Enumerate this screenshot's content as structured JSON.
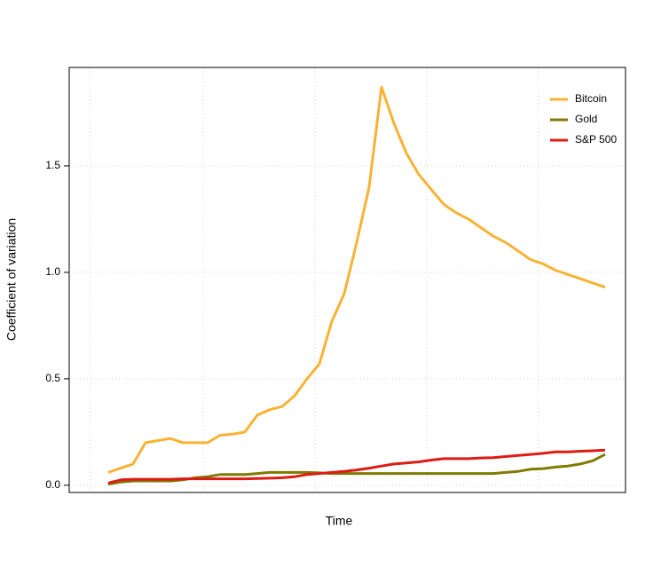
{
  "chart_data": {
    "type": "line",
    "xlabel": "Time",
    "ylabel": "Coefficient of variation",
    "ylim": [
      -0.034,
      1.9625
    ],
    "yticks": [
      {
        "value": 0,
        "label": "0.0"
      },
      0.5,
      {
        "value": 1,
        "label": "1.0"
      },
      1.5
    ],
    "grid": true,
    "legend": "topright",
    "series": [
      {
        "name": "Bitcoin",
        "color": "#f9b233",
        "values": [
          0.06,
          0.08,
          0.1,
          0.2,
          0.21,
          0.22,
          0.2,
          0.2,
          0.2,
          0.235,
          0.24,
          0.25,
          0.33,
          0.355,
          0.37,
          0.42,
          0.5,
          0.57,
          0.77,
          0.9,
          1.14,
          1.4,
          1.87,
          1.7,
          1.56,
          1.46,
          1.39,
          1.32,
          1.28,
          1.25,
          1.21,
          1.17,
          1.14,
          1.1,
          1.06,
          1.04,
          1.01,
          0.99,
          0.97,
          0.95,
          0.93
        ]
      },
      {
        "name": "Gold",
        "color": "#7f7a00",
        "values": [
          0.005,
          0.015,
          0.02,
          0.02,
          0.02,
          0.02,
          0.025,
          0.035,
          0.04,
          0.05,
          0.05,
          0.05,
          0.055,
          0.06,
          0.06,
          0.06,
          0.06,
          0.058,
          0.055,
          0.055,
          0.055,
          0.055,
          0.055,
          0.055,
          0.055,
          0.055,
          0.055,
          0.055,
          0.055,
          0.055,
          0.055,
          0.055,
          0.06,
          0.065,
          0.075,
          0.078,
          0.085,
          0.09,
          0.1,
          0.115,
          0.145
        ]
      },
      {
        "name": "S&P 500",
        "color": "#dc1c13",
        "values": [
          0.01,
          0.025,
          0.028,
          0.028,
          0.028,
          0.028,
          0.03,
          0.03,
          0.03,
          0.03,
          0.03,
          0.03,
          0.032,
          0.033,
          0.035,
          0.04,
          0.05,
          0.055,
          0.06,
          0.065,
          0.072,
          0.08,
          0.09,
          0.1,
          0.105,
          0.11,
          0.118,
          0.125,
          0.125,
          0.125,
          0.128,
          0.13,
          0.135,
          0.14,
          0.145,
          0.15,
          0.157,
          0.157,
          0.16,
          0.162,
          0.165
        ]
      }
    ]
  }
}
